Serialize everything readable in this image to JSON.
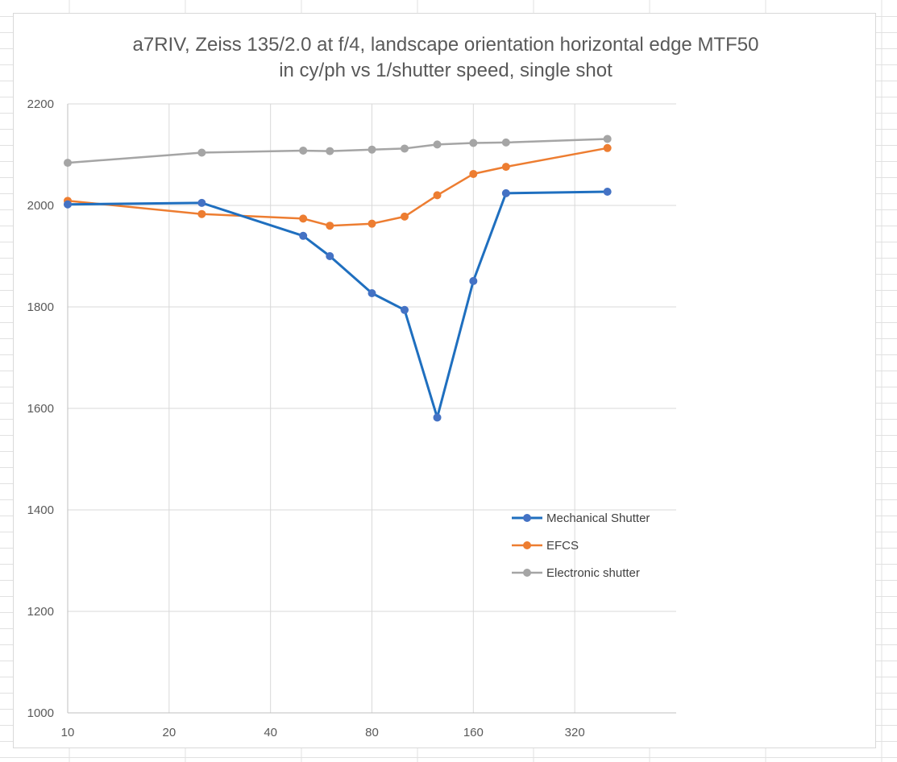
{
  "colors": {
    "mechanical": "#1f6fbf",
    "mechanical_marker": "#4472c4",
    "efcs": "#ed7d31",
    "electronic": "#a5a5a5",
    "gridline": "#d9d9d9",
    "axis": "#bfbfbf",
    "sheet_grid": "#e1e1e1"
  },
  "chart_data": {
    "type": "line",
    "title": [
      "a7RIV, Zeiss 135/2.0 at f/4, landscape orientation horizontal edge MTF50",
      "in cy/ph vs 1/shutter speed,  single shot"
    ],
    "xscale": "log2",
    "xlim": [
      10,
      640
    ],
    "xticks": [
      10,
      20,
      40,
      80,
      160,
      320
    ],
    "ylim": [
      1000,
      2200
    ],
    "yticks": [
      1000,
      1200,
      1400,
      1600,
      1800,
      2000,
      2200
    ],
    "grid": true,
    "legend_position": "bottom-right",
    "series": [
      {
        "name": "Mechanical Shutter",
        "color_key": "mechanical",
        "x": [
          10,
          25,
          50,
          60,
          80,
          100,
          125,
          160,
          200,
          400
        ],
        "y": [
          2002,
          2005,
          1940,
          1900,
          1827,
          1794,
          1582,
          1851,
          2024,
          2027
        ]
      },
      {
        "name": "EFCS",
        "color_key": "efcs",
        "x": [
          10,
          25,
          50,
          60,
          80,
          100,
          125,
          160,
          200,
          400
        ],
        "y": [
          2009,
          1983,
          1974,
          1960,
          1964,
          1978,
          2020,
          2062,
          2076,
          2113
        ]
      },
      {
        "name": "Electronic shutter",
        "color_key": "electronic",
        "x": [
          10,
          25,
          50,
          60,
          80,
          100,
          125,
          160,
          200,
          400
        ],
        "y": [
          2084,
          2104,
          2108,
          2107,
          2110,
          2112,
          2120,
          2123,
          2124,
          2131
        ]
      }
    ]
  }
}
